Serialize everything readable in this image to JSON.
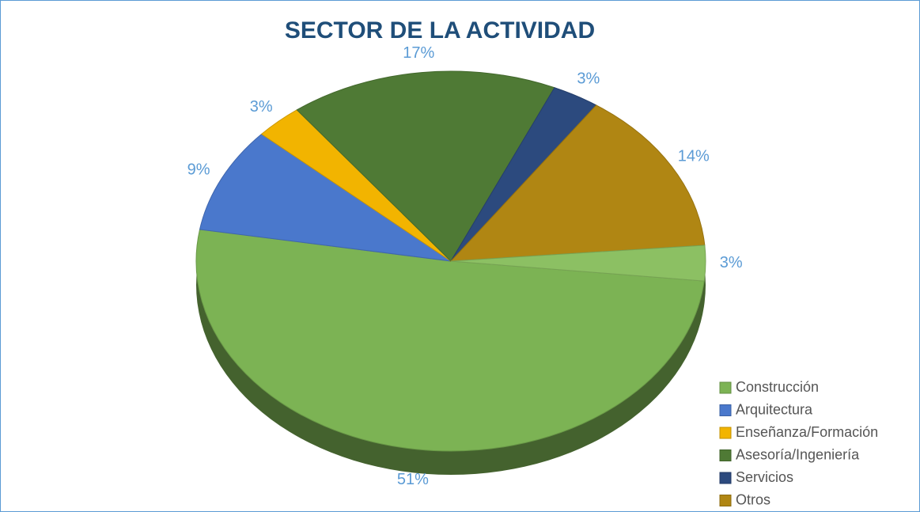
{
  "chart_data": {
    "type": "pie",
    "title": "SECTOR DE LA ACTIVIDAD",
    "categories": [
      "Construcción",
      "Arquitectura",
      "Enseñanza/Formación",
      "Asesoría/Ingeniería",
      "Servicios",
      "Otros",
      null
    ],
    "values": [
      51,
      9,
      3,
      17,
      3,
      14,
      3
    ],
    "value_labels": [
      "51%",
      "9%",
      "3%",
      "17%",
      "3%",
      "14%",
      "3%"
    ],
    "colors": [
      "#7cb354",
      "#4a78cc",
      "#f2b400",
      "#4f7a35",
      "#2c4a7e",
      "#b08613",
      "#8cc063"
    ],
    "legend": "right"
  }
}
